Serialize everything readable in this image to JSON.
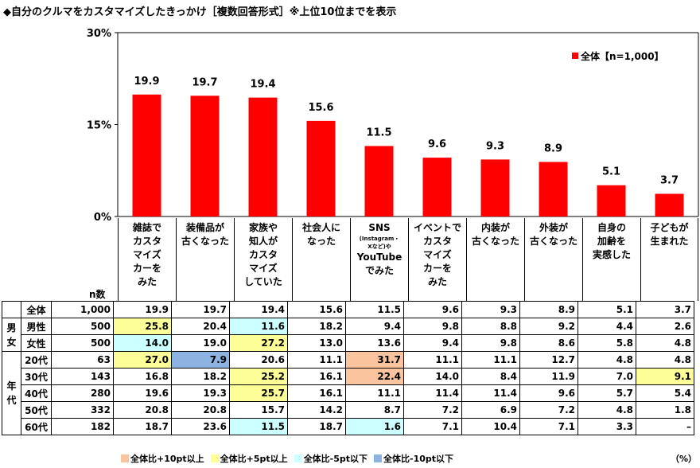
{
  "title": "◆自分のクルマをカスタマイズしたきっかけ［複数回答形式］※上位10位までを表示",
  "legend_label": "全体【n=1,000】",
  "n_header": "n数",
  "unit": "（%）",
  "colors": {
    "bar": "#ff0000",
    "orange": "#f9c49e",
    "yellow": "#fefe99",
    "cyan": "#ccffff",
    "blue": "#8db3e2"
  },
  "categories": [
    {
      "lines": [
        "雑誌で",
        "カスタ",
        "マイズ",
        "カーを",
        "みた"
      ]
    },
    {
      "lines": [
        "装備品が",
        "古くなった"
      ]
    },
    {
      "lines": [
        "家族や",
        "知人が",
        "カスタ",
        "マイズ",
        "していた"
      ]
    },
    {
      "lines": [
        "社会人に",
        "なった"
      ]
    },
    {
      "lines": [
        "SNS",
        "(Instagram・",
        "Xなど)や",
        "YouTube",
        "でみた"
      ]
    },
    {
      "lines": [
        "イベントで",
        "カスタ",
        "マイズ",
        "カーを",
        "みた"
      ]
    },
    {
      "lines": [
        "内装が",
        "古くなった"
      ]
    },
    {
      "lines": [
        "外装が",
        "古くなった"
      ]
    },
    {
      "lines": [
        "自身の",
        "加齢を",
        "実感した"
      ]
    },
    {
      "lines": [
        "子どもが",
        "生まれた"
      ]
    }
  ],
  "chart_data": {
    "type": "bar",
    "categories": [
      "雑誌でカスタマイズカーをみた",
      "装備品が古くなった",
      "家族や知人がカスタマイズしていた",
      "社会人になった",
      "SNS(Instagram・Xなど)やYouTubeでみた",
      "イベントでカスタマイズカーをみた",
      "内装が古くなった",
      "外装が古くなった",
      "自身の加齢を実感した",
      "子どもが生まれた"
    ],
    "series": [
      {
        "name": "全体【n=1,000】",
        "values": [
          19.9,
          19.7,
          19.4,
          15.6,
          11.5,
          9.6,
          9.3,
          8.9,
          5.1,
          3.7
        ]
      }
    ],
    "value_labels": [
      "19.9",
      "19.7",
      "19.4",
      "15.6",
      "11.5",
      "9.6",
      "9.3",
      "8.9",
      "5.1",
      "3.7"
    ],
    "yticks": [
      "0%",
      "15%",
      "30%"
    ],
    "ylim": [
      0,
      30
    ],
    "legend_position": "top-right"
  },
  "table": {
    "groups": [
      {
        "label": "",
        "rows": [
          {
            "label": "全体",
            "n": "1,000",
            "values": [
              "19.9",
              "19.7",
              "19.4",
              "15.6",
              "11.5",
              "9.6",
              "9.3",
              "8.9",
              "5.1",
              "3.7"
            ],
            "hl": [
              "",
              "",
              "",
              "",
              "",
              "",
              "",
              "",
              "",
              ""
            ]
          }
        ]
      },
      {
        "label": "男女",
        "rows": [
          {
            "label": "男性",
            "n": "500",
            "values": [
              "25.8",
              "20.4",
              "11.6",
              "18.2",
              "9.4",
              "9.8",
              "8.8",
              "9.2",
              "4.4",
              "2.6"
            ],
            "hl": [
              "y",
              "",
              "c",
              "",
              "",
              "",
              "",
              "",
              "",
              ""
            ]
          },
          {
            "label": "女性",
            "n": "500",
            "values": [
              "14.0",
              "19.0",
              "27.2",
              "13.0",
              "13.6",
              "9.4",
              "9.8",
              "8.6",
              "5.8",
              "4.8"
            ],
            "hl": [
              "c",
              "",
              "y",
              "",
              "",
              "",
              "",
              "",
              "",
              ""
            ]
          }
        ]
      },
      {
        "label": "年代",
        "rows": [
          {
            "label": "20代",
            "n": "63",
            "values": [
              "27.0",
              "7.9",
              "20.6",
              "11.1",
              "31.7",
              "11.1",
              "11.1",
              "12.7",
              "4.8",
              "4.8"
            ],
            "hl": [
              "y",
              "b",
              "",
              "",
              "o",
              "",
              "",
              "",
              "",
              ""
            ]
          },
          {
            "label": "30代",
            "n": "143",
            "values": [
              "16.8",
              "18.2",
              "25.2",
              "16.1",
              "22.4",
              "14.0",
              "8.4",
              "11.9",
              "7.0",
              "9.1"
            ],
            "hl": [
              "",
              "",
              "y",
              "",
              "o",
              "",
              "",
              "",
              "",
              "y"
            ]
          },
          {
            "label": "40代",
            "n": "280",
            "values": [
              "19.6",
              "19.3",
              "25.7",
              "16.1",
              "11.1",
              "11.4",
              "11.4",
              "9.6",
              "5.7",
              "5.4"
            ],
            "hl": [
              "",
              "",
              "y",
              "",
              "",
              "",
              "",
              "",
              "",
              ""
            ]
          },
          {
            "label": "50代",
            "n": "332",
            "values": [
              "20.8",
              "20.8",
              "15.7",
              "14.2",
              "8.7",
              "7.2",
              "6.9",
              "7.2",
              "4.8",
              "1.8"
            ],
            "hl": [
              "",
              "",
              "",
              "",
              "",
              "",
              "",
              "",
              "",
              ""
            ]
          },
          {
            "label": "60代",
            "n": "182",
            "values": [
              "18.7",
              "23.6",
              "11.5",
              "18.7",
              "1.6",
              "7.1",
              "10.4",
              "7.1",
              "3.3",
              "–"
            ],
            "hl": [
              "",
              "",
              "c",
              "",
              "c",
              "",
              "",
              "",
              "",
              ""
            ]
          }
        ]
      }
    ]
  },
  "bottom_legend": [
    {
      "label": "全体比+10pt以上",
      "color": "#f9c49e"
    },
    {
      "label": "全体比+5pt以上",
      "color": "#fefe99"
    },
    {
      "label": "全体比-5pt以下",
      "color": "#ccffff"
    },
    {
      "label": "全体比-10pt以下",
      "color": "#8db3e2"
    }
  ]
}
